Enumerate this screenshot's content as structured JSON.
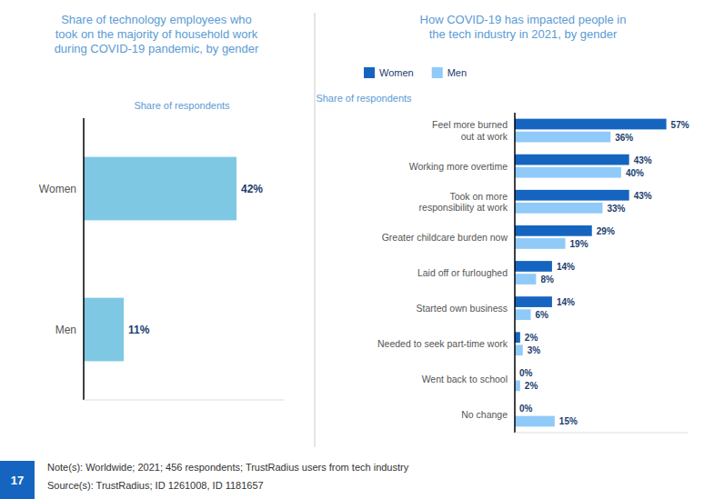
{
  "chart_data": [
    {
      "type": "bar",
      "orientation": "horizontal",
      "title": "Share of technology employees who\ntook on the majority of household work\nduring COVID-19 pandemic, by gender",
      "subtitle": "Share of respondents",
      "categories": [
        "Women",
        "Men"
      ],
      "values": [
        42,
        11
      ],
      "value_labels": [
        "42%",
        "11%"
      ],
      "color": "#7EC8E3",
      "xlim": [
        0,
        55
      ],
      "data_labels": true,
      "tick_labels": "y",
      "grid": false
    },
    {
      "type": "bar",
      "orientation": "horizontal",
      "title": "How COVID-19 has impacted people in\nthe tech industry in 2021, by gender",
      "subtitle": "Share of respondents",
      "categories": [
        "Feel more burned\nout at work",
        "Working more overtime",
        "Took on more\nresponsibility at work",
        "Greater childcare burden now",
        "Laid off or furloughed",
        "Started own business",
        "Needed to seek part-time work",
        "Went back to school",
        "No change"
      ],
      "series": [
        {
          "name": "Women",
          "color": "#1565C0",
          "values": [
            57,
            43,
            43,
            29,
            14,
            14,
            2,
            0,
            0
          ],
          "value_labels": [
            "57%",
            "43%",
            "43%",
            "29%",
            "14%",
            "14%",
            "2%",
            "0%",
            "0%"
          ]
        },
        {
          "name": "Men",
          "color": "#90CAF9",
          "values": [
            36,
            40,
            33,
            19,
            8,
            6,
            3,
            2,
            15
          ],
          "value_labels": [
            "36%",
            "40%",
            "33%",
            "19%",
            "8%",
            "6%",
            "3%",
            "2%",
            "15%"
          ]
        }
      ],
      "xlim": [
        0,
        65
      ],
      "legend": "upper left",
      "data_labels": true,
      "tick_labels": "y",
      "grid": false
    }
  ],
  "annotations": [
    "Note(s): Worldwide; 2021; 456 respondents; TrustRadius users from tech industry",
    "Source(s): TrustRadius; ID 1261008, ID 1181657",
    "17"
  ]
}
